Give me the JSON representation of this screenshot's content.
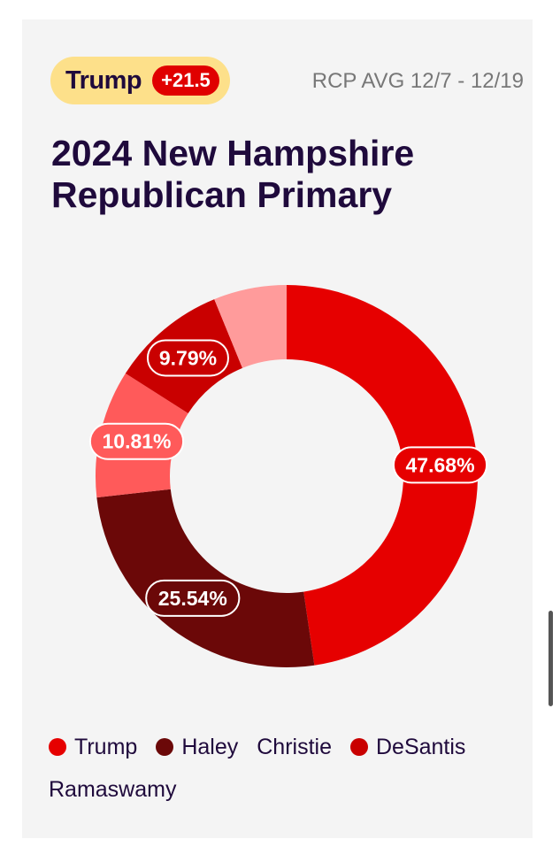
{
  "header": {
    "leader": "Trump",
    "lead": "+21.5",
    "rcp_label": "RCP AVG 12/7 - 12/19"
  },
  "chart_data": {
    "type": "pie",
    "title": "2024 New Hampshire Republican Primary",
    "series": [
      {
        "name": "Trump",
        "value": 47.68,
        "label": "47.68%",
        "color": "#e60000",
        "show_dot": true
      },
      {
        "name": "Haley",
        "value": 25.54,
        "label": "25.54%",
        "color": "#6b0808",
        "show_dot": true
      },
      {
        "name": "Christie",
        "value": 10.81,
        "label": "10.81%",
        "color": "#ff5a5a",
        "show_dot": false
      },
      {
        "name": "DeSantis",
        "value": 9.79,
        "label": "9.79%",
        "color": "#c90000",
        "show_dot": true
      },
      {
        "name": "Ramaswamy",
        "value": 6.18,
        "label": "",
        "color": "#ff9b9b",
        "show_dot": false
      }
    ],
    "legend_position": "bottom"
  },
  "colors": {
    "badge_bg": "#fde08a",
    "lead_bg": "#e00000",
    "title": "#1f0a3c"
  }
}
